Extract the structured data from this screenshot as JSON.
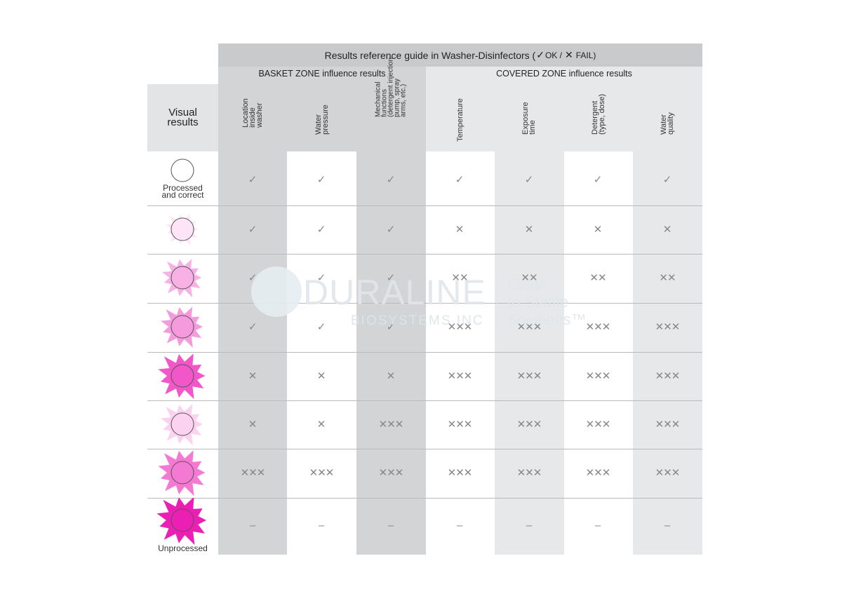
{
  "title": {
    "text": "Results reference guide in Washer-Disinfectors (",
    "ok_symbol": "✓",
    "ok_label": "OK /",
    "fail_symbol": "✕",
    "fail_label": "FAIL)"
  },
  "zones": {
    "basket": "BASKET ZONE influence results",
    "covered": "COVERED ZONE influence results"
  },
  "visual_header": [
    "Visual",
    "results"
  ],
  "columns": [
    "Location\ninside\nwasher",
    "Water\npressure",
    "Mechanical\nfunctions\n(detergent injection\npump, spray\narms, etc.)",
    "Temperature",
    "Exposure\ntime",
    "Detergent\n(type, dose)",
    "Water\nquality"
  ],
  "rows": [
    {
      "label": "Processed and correct",
      "label_lines": [
        "Processed",
        "and correct"
      ],
      "stain": "none",
      "marks": [
        "✓",
        "✓",
        "✓",
        "✓",
        "✓",
        "✓",
        "✓"
      ]
    },
    {
      "label": "",
      "stain": "faint",
      "marks": [
        "✓",
        "✓",
        "✓",
        "✕",
        "✕",
        "✕",
        "✕"
      ]
    },
    {
      "label": "",
      "stain": "light",
      "marks": [
        "✓",
        "✓",
        "✓",
        "✕✕",
        "✕✕",
        "✕✕",
        "✕✕"
      ]
    },
    {
      "label": "",
      "stain": "light2",
      "marks": [
        "✓",
        "✓",
        "✓",
        "✕✕✕",
        "✕✕✕",
        "✕✕✕",
        "✕✕✕"
      ]
    },
    {
      "label": "",
      "stain": "medium",
      "marks": [
        "✕",
        "✕",
        "✕",
        "✕✕✕",
        "✕✕✕",
        "✕✕✕",
        "✕✕✕"
      ]
    },
    {
      "label": "",
      "stain": "faint2",
      "marks": [
        "✕",
        "✕",
        "✕✕✕",
        "✕✕✕",
        "✕✕✕",
        "✕✕✕",
        "✕✕✕"
      ]
    },
    {
      "label": "",
      "stain": "heavy",
      "marks": [
        "✕✕✕",
        "✕✕✕",
        "✕✕✕",
        "✕✕✕",
        "✕✕✕",
        "✕✕✕",
        "✕✕✕"
      ]
    },
    {
      "label": "Unprocessed",
      "label_lines": [
        "Unprocessed"
      ],
      "stain": "full",
      "marks": [
        "–",
        "–",
        "–",
        "–",
        "–",
        "–",
        "–"
      ]
    }
  ],
  "watermark": {
    "brand": "DURALINE",
    "sub": "BIOSYSTEMS INC",
    "tagline": [
      "Clean",
      "to Sterile",
      "Solutions™"
    ]
  },
  "colors": {
    "stain_pink": "#ec1fb5",
    "header_gray": "#c9cacc",
    "mark_gray": "#888888"
  }
}
